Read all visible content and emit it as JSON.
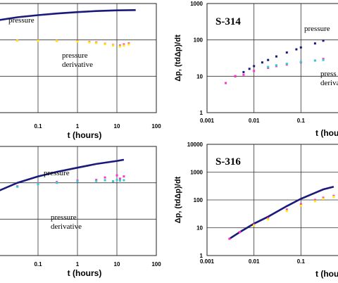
{
  "chart_data": [
    {
      "type": "scatter",
      "title": "",
      "xlabel": "t (hours)",
      "ylabel": "",
      "x_scale": "log",
      "y_scale": "log",
      "xlim": [
        0.01,
        100
      ],
      "ylim": [
        1,
        1000
      ],
      "x_ticks": [
        "0.1",
        "1",
        "10",
        "100"
      ],
      "y_ticks": [],
      "annotations": [
        "pressure",
        "pressure\nderivative"
      ],
      "series": [
        {
          "color": "#1a1a7a",
          "style": "line",
          "x": [
            0.01,
            0.03,
            0.1,
            0.3,
            1,
            3,
            10,
            30
          ],
          "y": [
            350,
            420,
            480,
            530,
            580,
            620,
            650,
            660
          ]
        },
        {
          "color": "#ff33cc",
          "style": "points",
          "x": [
            0.01,
            0.03,
            0.1,
            0.3,
            1,
            2,
            3,
            5,
            8,
            12,
            15,
            20
          ],
          "y": [
            98,
            97,
            96,
            95,
            93,
            88,
            85,
            78,
            72,
            70,
            75,
            80
          ]
        },
        {
          "color": "#ffee00",
          "style": "points",
          "x": [
            0.01,
            0.03,
            0.1,
            0.3,
            1,
            2,
            3,
            5,
            8,
            12,
            15,
            20
          ],
          "y": [
            96,
            95,
            94,
            93,
            90,
            86,
            82,
            76,
            70,
            66,
            70,
            75
          ]
        }
      ]
    },
    {
      "type": "scatter",
      "title": "S-314",
      "xlabel": "t (hou",
      "ylabel": "Δp, (tdΔp)/dt",
      "x_scale": "log",
      "y_scale": "log",
      "xlim": [
        0.001,
        1
      ],
      "ylim": [
        1,
        1000
      ],
      "x_ticks": [
        "0.001",
        "0.01",
        "0.1"
      ],
      "y_ticks": [
        "1",
        "10",
        "100",
        "1000"
      ],
      "annotations": [
        "pressure",
        "press\nderivat"
      ],
      "series": [
        {
          "color": "#1a1a7a",
          "style": "points",
          "x": [
            0.0025,
            0.004,
            0.006,
            0.008,
            0.01,
            0.015,
            0.02,
            0.03,
            0.05,
            0.08,
            0.1,
            0.2,
            0.3
          ],
          "y": [
            6.5,
            10,
            13,
            16,
            19,
            24,
            28,
            35,
            45,
            55,
            62,
            80,
            95
          ]
        },
        {
          "color": "#ff33cc",
          "style": "points",
          "x": [
            0.0025,
            0.004,
            0.006,
            0.01,
            0.02,
            0.03,
            0.05,
            0.1,
            0.2,
            0.3
          ],
          "y": [
            6.5,
            10,
            11,
            14,
            17,
            19,
            21,
            24,
            27,
            30
          ]
        },
        {
          "color": "#33cccc",
          "style": "points",
          "x": [
            0.02,
            0.03,
            0.05,
            0.1,
            0.2,
            0.3
          ],
          "y": [
            18,
            20,
            22,
            25,
            27,
            28
          ]
        }
      ]
    },
    {
      "type": "scatter",
      "title": "",
      "xlabel": "t (hours)",
      "ylabel": "",
      "x_scale": "log",
      "y_scale": "log",
      "xlim": [
        0.01,
        100
      ],
      "ylim": [
        1,
        1000
      ],
      "x_ticks": [
        "0.1",
        "1",
        "10",
        "100"
      ],
      "y_ticks": [],
      "annotations": [
        "pressure",
        "pressure\nderivative"
      ],
      "series": [
        {
          "color": "#1a1a7a",
          "style": "line",
          "x": [
            0.01,
            0.03,
            0.1,
            0.3,
            1,
            3,
            10,
            15
          ],
          "y": [
            60,
            100,
            150,
            200,
            260,
            330,
            400,
            430
          ]
        },
        {
          "color": "#ff33cc",
          "style": "points",
          "x": [
            0.01,
            0.03,
            0.1,
            0.3,
            1,
            3,
            5,
            8,
            10,
            12,
            15
          ],
          "y": [
            60,
            80,
            95,
            105,
            115,
            120,
            140,
            110,
            160,
            130,
            150
          ]
        },
        {
          "color": "#33cccc",
          "style": "points",
          "x": [
            0.01,
            0.03,
            0.1,
            0.3,
            1,
            3,
            5,
            8,
            10,
            12,
            15
          ],
          "y": [
            60,
            78,
            92,
            100,
            108,
            112,
            118,
            110,
            120,
            115,
            118
          ]
        }
      ]
    },
    {
      "type": "scatter",
      "title": "S-316",
      "xlabel": "t (hou",
      "ylabel": "Δp, (tdΔp)/dt",
      "x_scale": "log",
      "y_scale": "log",
      "xlim": [
        0.001,
        1
      ],
      "ylim": [
        1,
        10000
      ],
      "x_ticks": [
        "0.001",
        "0.01",
        "0.1"
      ],
      "y_ticks": [
        "1",
        "10",
        "100",
        "1000",
        "10000"
      ],
      "annotations": [],
      "series": [
        {
          "color": "#1a1a7a",
          "style": "line",
          "x": [
            0.003,
            0.005,
            0.01,
            0.02,
            0.05,
            0.1,
            0.2,
            0.3,
            0.5
          ],
          "y": [
            4,
            7,
            14,
            25,
            60,
            110,
            180,
            240,
            300
          ]
        },
        {
          "color": "#ff33cc",
          "style": "points",
          "x": [
            0.003,
            0.005,
            0.01,
            0.02,
            0.05,
            0.1,
            0.2,
            0.3,
            0.5
          ],
          "y": [
            4,
            7,
            13,
            22,
            45,
            70,
            100,
            120,
            140
          ]
        },
        {
          "color": "#ffee00",
          "style": "points",
          "x": [
            0.01,
            0.02,
            0.05,
            0.1,
            0.2,
            0.3,
            0.5
          ],
          "y": [
            12,
            20,
            40,
            62,
            90,
            110,
            130
          ]
        }
      ]
    }
  ]
}
